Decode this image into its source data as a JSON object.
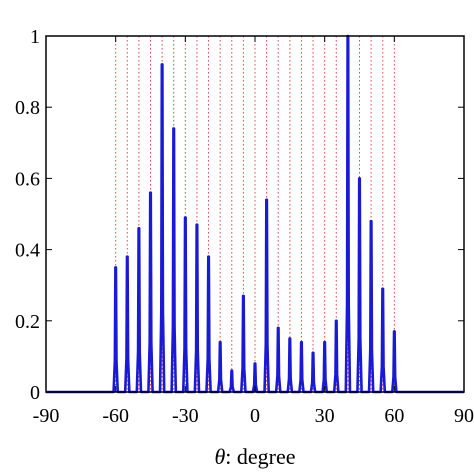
{
  "chart_data": {
    "type": "line",
    "xlabel_symbol": "θ",
    "xlabel_text": ": degree",
    "ylabel": "",
    "xlim": [
      -90,
      90
    ],
    "ylim": [
      0,
      1
    ],
    "xticks": [
      "-90",
      "-60",
      "-30",
      "0",
      "30",
      "60",
      "90"
    ],
    "xtick_values": [
      -90,
      -60,
      -30,
      0,
      30,
      60,
      90
    ],
    "yticks": [
      "0",
      "0.2",
      "0.4",
      "0.6",
      "0.8",
      "1"
    ],
    "ytick_values": [
      0,
      0.2,
      0.4,
      0.6,
      0.8,
      1
    ],
    "reference_lines_color": "#e8474a",
    "reference_lines_style": "dotted",
    "reference_lines_x": [
      -60,
      -55,
      -50,
      -45,
      -40,
      -35,
      -30,
      -25,
      -20,
      -15,
      -10,
      -5,
      0,
      5,
      10,
      15,
      20,
      25,
      30,
      35,
      40,
      45,
      50,
      55,
      60
    ],
    "series": [
      {
        "color": "#1a1ad6",
        "peaks": [
          {
            "x": -60,
            "y": 0.35
          },
          {
            "x": -55,
            "y": 0.38
          },
          {
            "x": -50,
            "y": 0.46
          },
          {
            "x": -45,
            "y": 0.56
          },
          {
            "x": -40,
            "y": 0.92
          },
          {
            "x": -35,
            "y": 0.74
          },
          {
            "x": -30,
            "y": 0.49
          },
          {
            "x": -25,
            "y": 0.47
          },
          {
            "x": -20,
            "y": 0.38
          },
          {
            "x": -15,
            "y": 0.14
          },
          {
            "x": -10,
            "y": 0.06
          },
          {
            "x": -5,
            "y": 0.27
          },
          {
            "x": 0,
            "y": 0.08
          },
          {
            "x": 5,
            "y": 0.54
          },
          {
            "x": 10,
            "y": 0.18
          },
          {
            "x": 15,
            "y": 0.15
          },
          {
            "x": 20,
            "y": 0.14
          },
          {
            "x": 25,
            "y": 0.11
          },
          {
            "x": 30,
            "y": 0.14
          },
          {
            "x": 35,
            "y": 0.2
          },
          {
            "x": 40,
            "y": 1.0
          },
          {
            "x": 45,
            "y": 0.6
          },
          {
            "x": 50,
            "y": 0.48
          },
          {
            "x": 55,
            "y": 0.29
          },
          {
            "x": 60,
            "y": 0.17
          }
        ]
      }
    ]
  }
}
